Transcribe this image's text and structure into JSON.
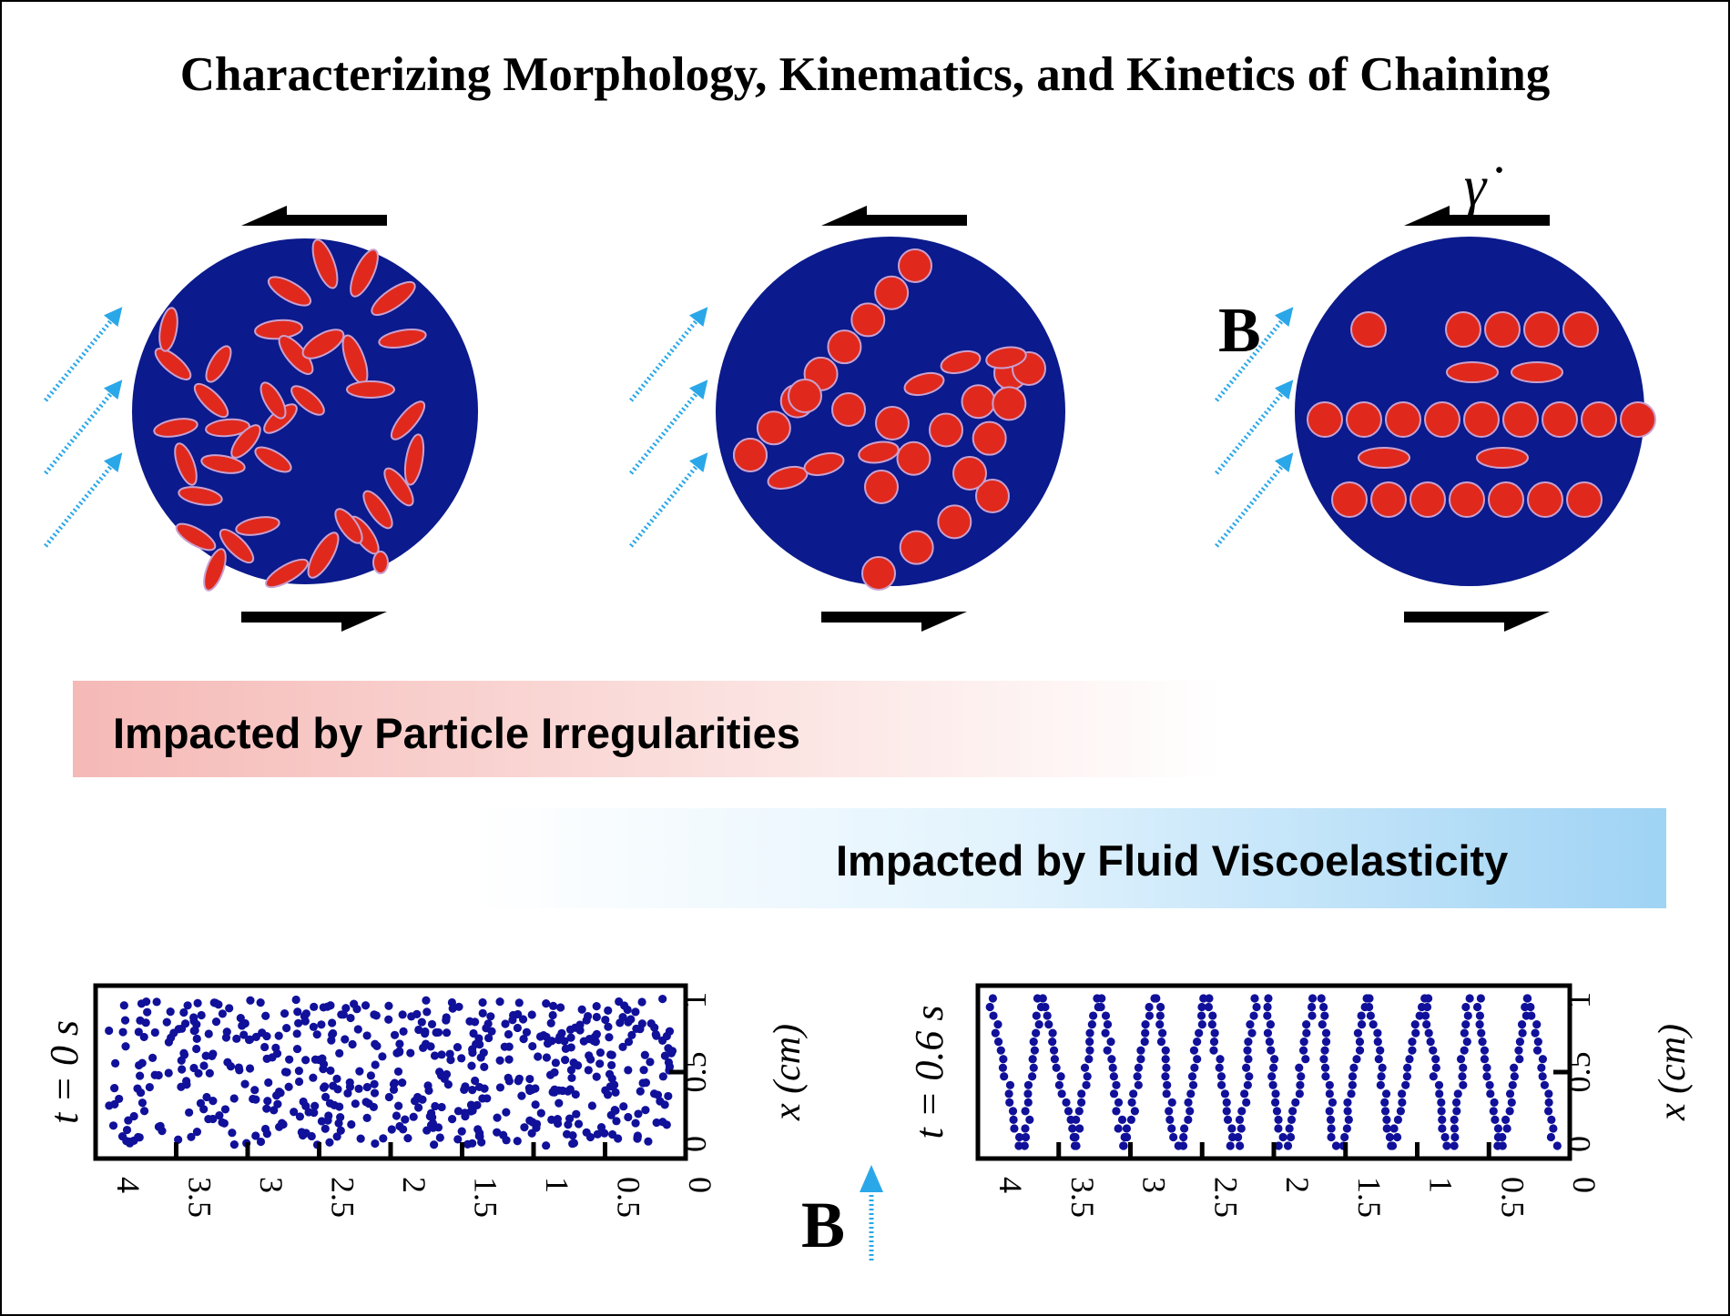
{
  "title": "Characterizing Morphology, Kinematics, and Kinetics of Chaining",
  "field_label": "B",
  "shear_rate_label": "γ̇",
  "band_particle": "Impacted by Particle Irregularities",
  "band_fluid": "Impacted by Fluid Viscoelasticity",
  "bottom_field_label": "B",
  "colors": {
    "disk": "#0b1a8c",
    "particle": "#e0291c",
    "field_arrow": "#2aa7e8",
    "dot": "#10109a",
    "band_pink": "#f7c0bd",
    "band_blue": "#9fd3f4"
  },
  "panels": [
    {
      "time_label": "t = 0 s",
      "x_ticks": [
        "4",
        "3.5",
        "3",
        "2.5",
        "2",
        "1.5",
        "1",
        "0.5",
        "0"
      ],
      "y_ticks": [
        "1",
        "0.5",
        "0"
      ],
      "y_axis_label": "x (cm)"
    },
    {
      "time_label": "t = 0.6 s",
      "x_ticks": [
        "4",
        "3.5",
        "3",
        "2.5",
        "2",
        "1.5",
        "1",
        "0.5",
        "0"
      ],
      "y_ticks": [
        "1",
        "0.5",
        "0"
      ],
      "y_axis_label": "x (cm)"
    }
  ]
}
